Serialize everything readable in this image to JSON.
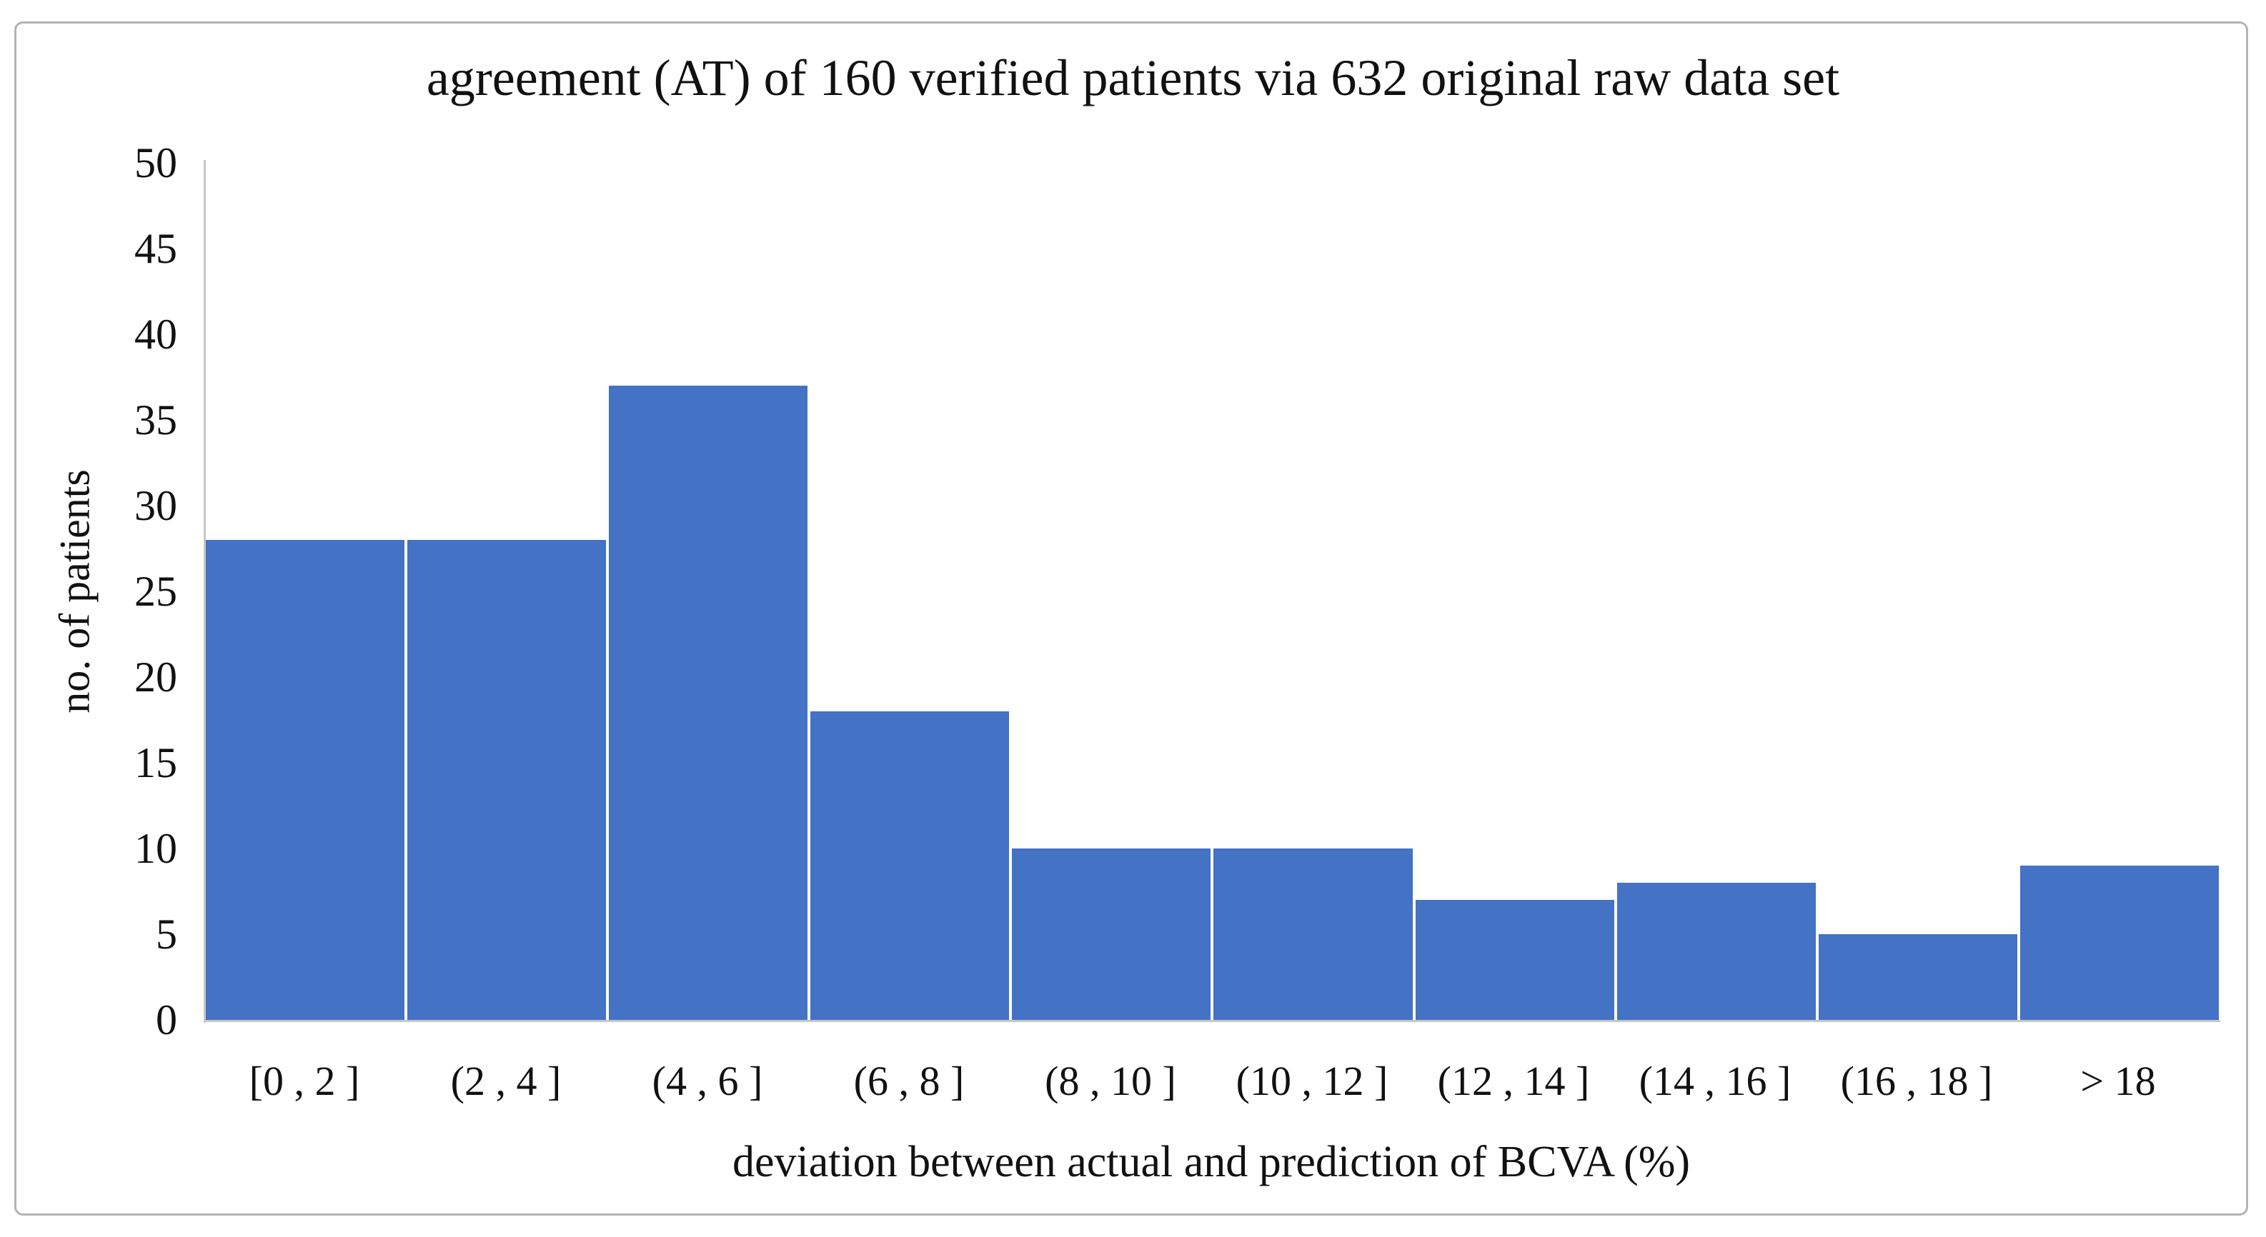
{
  "chart_data": {
    "type": "bar",
    "title": "agreement (AT) of 160 verified patients via 632 original raw data set",
    "xlabel": "deviation between actual and prediction of BCVA (%)",
    "ylabel": "no. of patients",
    "categories": [
      "[0 , 2 ]",
      "(2 , 4 ]",
      "(4 , 6 ]",
      "(6 , 8 ]",
      "(8 , 10 ]",
      "(10 , 12 ]",
      "(12 , 14 ]",
      "(14 , 16 ]",
      "(16 , 18 ]",
      "> 18"
    ],
    "values": [
      28,
      28,
      37,
      18,
      10,
      10,
      7,
      8,
      5,
      9
    ],
    "ylim": [
      0,
      50
    ],
    "yticks": [
      0,
      5,
      10,
      15,
      20,
      25,
      30,
      35,
      40,
      45,
      50
    ],
    "grid": false,
    "legend_position": "none",
    "bar_color": "#4472C4",
    "bar_gap_color": "#ffffff",
    "axis_line_color": "#c6c6c6",
    "text_color": "#111111"
  },
  "frame": {
    "border_color": "#b3b3b3",
    "background": "#ffffff"
  }
}
